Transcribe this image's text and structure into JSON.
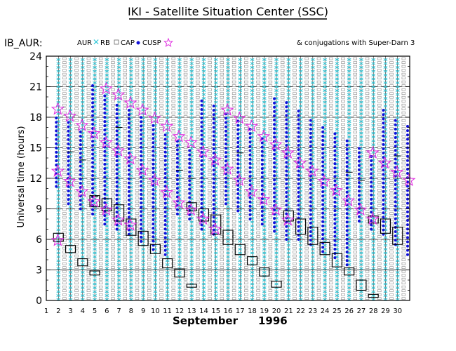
{
  "chart_data": {
    "type": "scatter",
    "title": "IKI - Satellite Situation Center (SSC)",
    "panel_label": "IB_AUR:",
    "legend": {
      "aur": "AUR",
      "rb": "RB",
      "cap": "CAP",
      "cusp": "CUSP",
      "conjugations": "& conjugations with Super-Darn 3"
    },
    "ylabel": "Universal time (hours)",
    "xlabel_month": "September",
    "xlabel_year": "1996",
    "ylim": [
      0,
      24
    ],
    "xlim": [
      1,
      31
    ],
    "y_ticks": [
      "0",
      "3",
      "6",
      "9",
      "12",
      "15",
      "18",
      "21",
      "24"
    ],
    "x_ticks": [
      "1",
      "2",
      "3",
      "4",
      "5",
      "6",
      "7",
      "8",
      "9",
      "10",
      "11",
      "12",
      "13",
      "14",
      "15",
      "16",
      "17",
      "18",
      "19",
      "20",
      "21",
      "22",
      "23",
      "24",
      "25",
      "26",
      "27",
      "28",
      "29",
      "30"
    ],
    "days": [
      2,
      3,
      4,
      5,
      6,
      7,
      8,
      9,
      10,
      11,
      12,
      13,
      14,
      15,
      16,
      17,
      18,
      19,
      20,
      21,
      22,
      23,
      24,
      25,
      26,
      27,
      28,
      29,
      30
    ],
    "cusp_star_series": [
      {
        "day": 2,
        "t": [
          18.8,
          12.7,
          5.9
        ]
      },
      {
        "day": 3,
        "t": [
          18.1,
          11.7
        ]
      },
      {
        "day": 4,
        "t": [
          17.2,
          10.7
        ]
      },
      {
        "day": 5,
        "t": [
          16.4,
          9.7
        ]
      },
      {
        "day": 6,
        "t": [
          20.8,
          15.5,
          8.9
        ]
      },
      {
        "day": 7,
        "t": [
          20.2,
          14.7,
          7.9
        ]
      },
      {
        "day": 8,
        "t": [
          19.4,
          13.9,
          7.4
        ]
      },
      {
        "day": 9,
        "t": [
          18.7,
          12.8
        ]
      },
      {
        "day": 10,
        "t": [
          17.9,
          11.8
        ]
      },
      {
        "day": 11,
        "t": [
          17.1,
          10.6
        ]
      },
      {
        "day": 12,
        "t": [
          16.1,
          9.6
        ]
      },
      {
        "day": 13,
        "t": [
          15.5,
          8.9
        ]
      },
      {
        "day": 14,
        "t": [
          14.6,
          8.0
        ]
      },
      {
        "day": 15,
        "t": [
          13.8,
          7.0
        ]
      },
      {
        "day": 16,
        "t": [
          18.7,
          12.9
        ]
      },
      {
        "day": 17,
        "t": [
          17.9,
          11.8
        ]
      },
      {
        "day": 18,
        "t": [
          17.1,
          10.7
        ]
      },
      {
        "day": 19,
        "t": [
          16.1,
          9.9
        ]
      },
      {
        "day": 20,
        "t": [
          15.3,
          8.9
        ]
      },
      {
        "day": 21,
        "t": [
          14.5,
          7.9
        ]
      },
      {
        "day": 22,
        "t": [
          13.5
        ]
      },
      {
        "day": 23,
        "t": [
          12.7
        ]
      },
      {
        "day": 24,
        "t": [
          11.7
        ]
      },
      {
        "day": 25,
        "t": [
          10.8
        ]
      },
      {
        "day": 26,
        "t": [
          9.8
        ]
      },
      {
        "day": 27,
        "t": [
          8.9
        ]
      },
      {
        "day": 28,
        "t": [
          14.5,
          8.0
        ]
      },
      {
        "day": 29,
        "t": [
          13.5
        ]
      },
      {
        "day": 30,
        "t": [
          12.6
        ]
      },
      {
        "day": 31,
        "t": [
          11.8
        ]
      }
    ],
    "cusp_dot_series": [
      {
        "day": 2,
        "start": 11.2,
        "end": 18.0
      },
      {
        "day": 3,
        "start": 9.5,
        "end": 17.5
      },
      {
        "day": 4,
        "start": 9.0,
        "end": 16.8
      },
      {
        "day": 5,
        "start": 8.5,
        "end": 21.2
      },
      {
        "day": 6,
        "start": 7.5,
        "end": 20.3
      },
      {
        "day": 7,
        "start": 7.0,
        "end": 19.5
      },
      {
        "day": 8,
        "start": 6.5,
        "end": 18.8
      },
      {
        "day": 9,
        "start": 5.8,
        "end": 18.0
      },
      {
        "day": 10,
        "start": 5.0,
        "end": 17.3
      },
      {
        "day": 11,
        "start": 4.5,
        "end": 16.5
      },
      {
        "day": 12,
        "start": 8.5,
        "end": 15.8
      },
      {
        "day": 13,
        "start": 8.0,
        "end": 15.0
      },
      {
        "day": 14,
        "start": 7.0,
        "end": 20.0
      },
      {
        "day": 15,
        "start": 6.5,
        "end": 19.2
      },
      {
        "day": 16,
        "start": 9.5,
        "end": 18.5
      },
      {
        "day": 17,
        "start": 8.8,
        "end": 17.8
      },
      {
        "day": 18,
        "start": 8.0,
        "end": 17.0
      },
      {
        "day": 19,
        "start": 7.5,
        "end": 16.3
      },
      {
        "day": 20,
        "start": 6.8,
        "end": 20.2
      },
      {
        "day": 21,
        "start": 6.0,
        "end": 19.5
      },
      {
        "day": 22,
        "start": 6.0,
        "end": 18.8
      },
      {
        "day": 23,
        "start": 5.5,
        "end": 18.0
      },
      {
        "day": 24,
        "start": 4.8,
        "end": 17.2
      },
      {
        "day": 25,
        "start": 4.2,
        "end": 16.5
      },
      {
        "day": 26,
        "start": 3.5,
        "end": 15.8
      },
      {
        "day": 27,
        "start": 7.8,
        "end": 15.0
      },
      {
        "day": 28,
        "start": 7.0,
        "end": 14.3
      },
      {
        "day": 29,
        "start": 6.5,
        "end": 18.8
      },
      {
        "day": 30,
        "start": 5.5,
        "end": 18.0
      },
      {
        "day": 31,
        "start": 4.5,
        "end": 17.2
      }
    ],
    "conjugation_boxes": [
      {
        "day": 2,
        "start": 5.8,
        "end": 6.6
      },
      {
        "day": 3,
        "start": 4.7,
        "end": 5.4
      },
      {
        "day": 4,
        "start": 3.4,
        "end": 4.1
      },
      {
        "day": 5,
        "start": 2.5,
        "end": 2.9
      },
      {
        "day": 5,
        "start": 9.2,
        "end": 10.3
      },
      {
        "day": 6,
        "start": 8.8,
        "end": 10.0
      },
      {
        "day": 7,
        "start": 7.8,
        "end": 9.4
      },
      {
        "day": 8,
        "start": 6.4,
        "end": 8.0
      },
      {
        "day": 9,
        "start": 5.4,
        "end": 6.8
      },
      {
        "day": 10,
        "start": 4.6,
        "end": 5.5
      },
      {
        "day": 11,
        "start": 3.2,
        "end": 4.1
      },
      {
        "day": 12,
        "start": 2.3,
        "end": 3.1
      },
      {
        "day": 13,
        "start": 1.3,
        "end": 1.6
      },
      {
        "day": 13,
        "start": 8.8,
        "end": 9.6
      },
      {
        "day": 14,
        "start": 7.8,
        "end": 9.0
      },
      {
        "day": 15,
        "start": 6.5,
        "end": 8.4
      },
      {
        "day": 16,
        "start": 5.5,
        "end": 6.9
      },
      {
        "day": 17,
        "start": 4.5,
        "end": 5.5
      },
      {
        "day": 18,
        "start": 3.5,
        "end": 4.3
      },
      {
        "day": 19,
        "start": 2.4,
        "end": 3.2
      },
      {
        "day": 20,
        "start": 1.3,
        "end": 1.9
      },
      {
        "day": 21,
        "start": 7.8,
        "end": 8.8
      },
      {
        "day": 22,
        "start": 6.5,
        "end": 8.0
      },
      {
        "day": 23,
        "start": 5.5,
        "end": 7.2
      },
      {
        "day": 24,
        "start": 4.5,
        "end": 5.7
      },
      {
        "day": 25,
        "start": 3.3,
        "end": 4.6
      },
      {
        "day": 26,
        "start": 2.5,
        "end": 3.2
      },
      {
        "day": 27,
        "start": 1.0,
        "end": 2.0
      },
      {
        "day": 28,
        "start": 0.3,
        "end": 0.6
      },
      {
        "day": 28,
        "start": 7.6,
        "end": 8.3
      },
      {
        "day": 29,
        "start": 6.6,
        "end": 8.0
      },
      {
        "day": 30,
        "start": 5.5,
        "end": 7.2
      }
    ],
    "tick_marks": [
      {
        "day": 3,
        "t": 14.6
      },
      {
        "day": 4,
        "t": 13.8
      },
      {
        "day": 5,
        "t": 10.2
      },
      {
        "day": 7,
        "t": 17.0
      },
      {
        "day": 12,
        "t": 12.8
      },
      {
        "day": 13,
        "t": 12.0
      },
      {
        "day": 17,
        "t": 14.5
      },
      {
        "day": 26,
        "t": 12.6
      },
      {
        "day": 27,
        "t": 11.8
      },
      {
        "day": 30,
        "t": 14.2
      }
    ],
    "colors": {
      "rb": "#33c8d8",
      "cap": "#888888",
      "cusp_dot": "#1010d8",
      "cusp_star": "#e030e0",
      "grid": "#000000"
    }
  }
}
